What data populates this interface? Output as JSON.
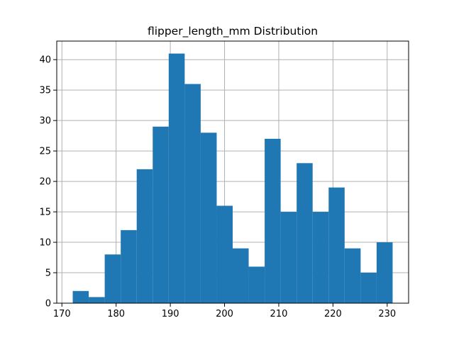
{
  "chart_data": {
    "type": "bar",
    "title": "flipper_length_mm Distribution",
    "xlabel": "",
    "ylabel": "",
    "bin_range": [
      172,
      231
    ],
    "bins": 20,
    "values": [
      2,
      1,
      8,
      12,
      22,
      29,
      41,
      36,
      28,
      16,
      9,
      6,
      27,
      15,
      23,
      15,
      19,
      9,
      5,
      10
    ],
    "xlim": [
      169.05,
      233.95
    ],
    "ylim": [
      0,
      43.05
    ],
    "xticks": [
      "170",
      "180",
      "190",
      "200",
      "210",
      "220",
      "230"
    ],
    "yticks": [
      "0",
      "5",
      "10",
      "15",
      "20",
      "25",
      "30",
      "35",
      "40"
    ],
    "grid": true,
    "bar_color": "#1f77b4",
    "grid_color": "#b0b0b0"
  }
}
